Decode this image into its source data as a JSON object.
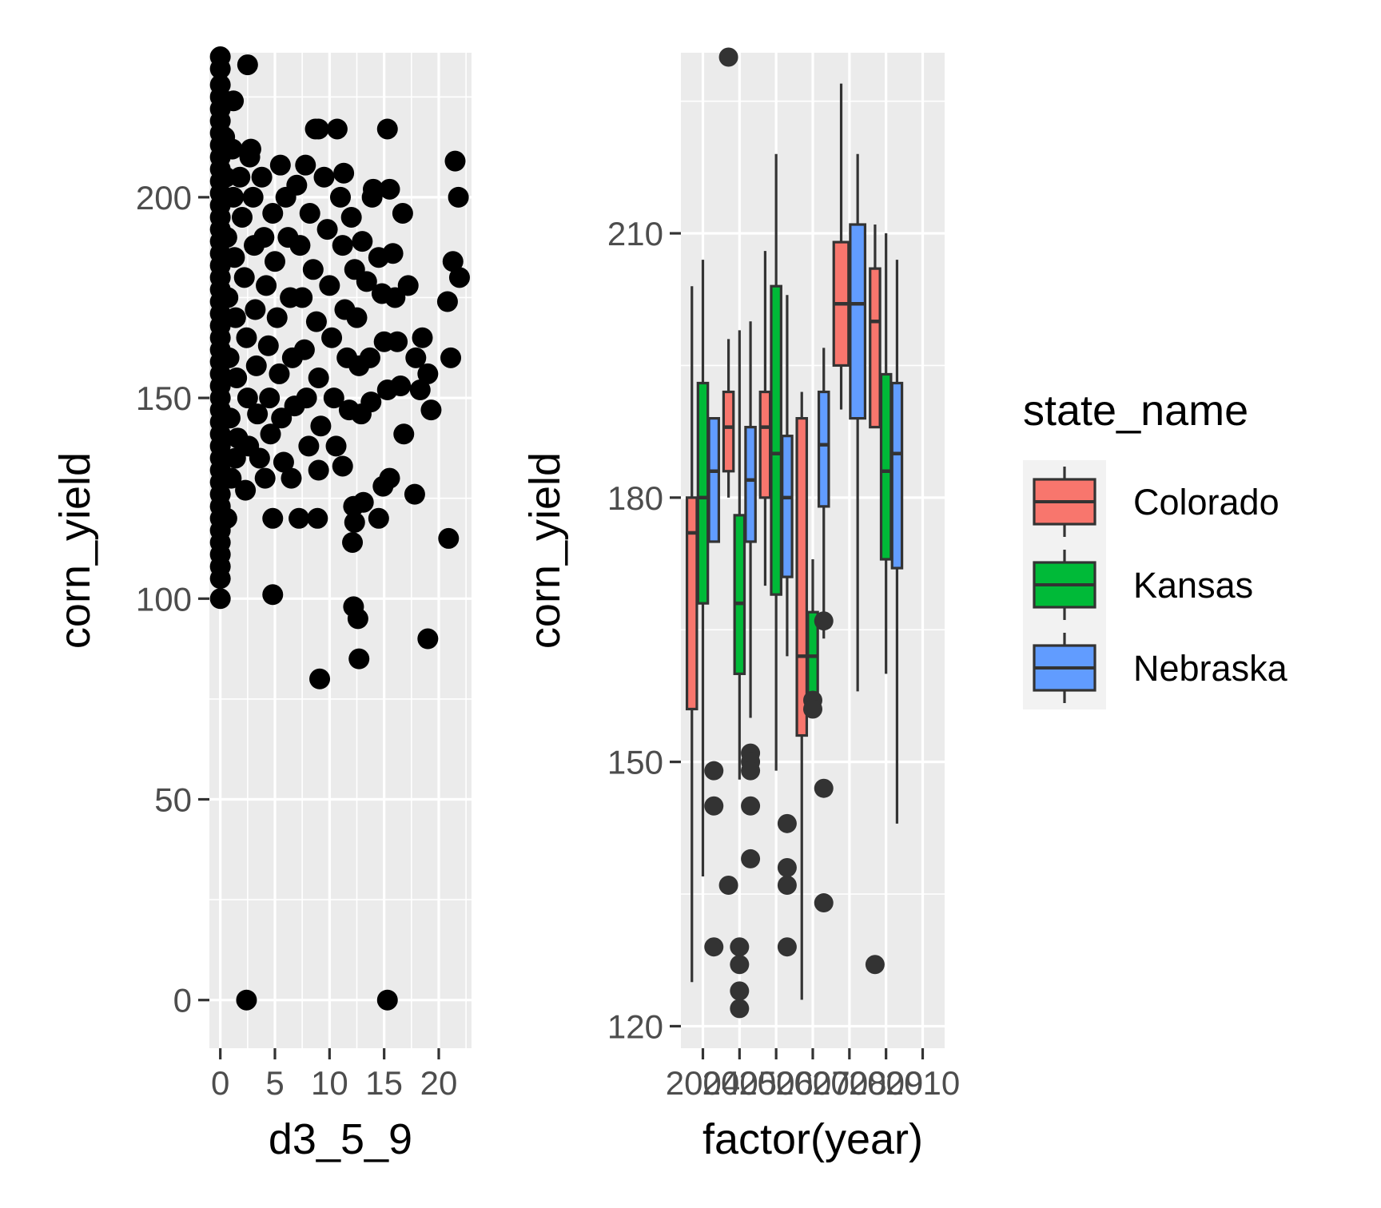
{
  "chart_data": [
    {
      "type": "scatter",
      "xlabel": "d3_5_9",
      "ylabel": "corn_yield",
      "xlim": [
        -1,
        23
      ],
      "ylim": [
        -12,
        236
      ],
      "xticks": [
        0,
        5,
        10,
        15,
        20
      ],
      "xtick_labels": [
        "0",
        "5",
        "10",
        "15",
        "20"
      ],
      "yticks": [
        0,
        50,
        100,
        150,
        200
      ],
      "ytick_labels": [
        "0",
        "50",
        "100",
        "150",
        "200"
      ],
      "grid": true,
      "point_color": "#000000",
      "points": [
        [
          0,
          235
        ],
        [
          0,
          232
        ],
        [
          0,
          228
        ],
        [
          0,
          225
        ],
        [
          0,
          222
        ],
        [
          0,
          219
        ],
        [
          0,
          216
        ],
        [
          0,
          213
        ],
        [
          0,
          210
        ],
        [
          0,
          207
        ],
        [
          0,
          204
        ],
        [
          0,
          201
        ],
        [
          0,
          198
        ],
        [
          0,
          195
        ],
        [
          0,
          192
        ],
        [
          0,
          189
        ],
        [
          0,
          186
        ],
        [
          0,
          183
        ],
        [
          0,
          180
        ],
        [
          0,
          177
        ],
        [
          0,
          174
        ],
        [
          0,
          171
        ],
        [
          0,
          168
        ],
        [
          0,
          165
        ],
        [
          0,
          162
        ],
        [
          0,
          159
        ],
        [
          0,
          156
        ],
        [
          0,
          153
        ],
        [
          0,
          150
        ],
        [
          0,
          147
        ],
        [
          0,
          144
        ],
        [
          0,
          141
        ],
        [
          0,
          138
        ],
        [
          0,
          135
        ],
        [
          0,
          132
        ],
        [
          0,
          129
        ],
        [
          0,
          126
        ],
        [
          0,
          123
        ],
        [
          0,
          120
        ],
        [
          0,
          117
        ],
        [
          0,
          114
        ],
        [
          0,
          111
        ],
        [
          0,
          108
        ],
        [
          0,
          105
        ],
        [
          0,
          100
        ],
        [
          0.4,
          215
        ],
        [
          0.5,
          205
        ],
        [
          0.6,
          190
        ],
        [
          0.7,
          175
        ],
        [
          0.8,
          160
        ],
        [
          0.9,
          145
        ],
        [
          1.0,
          130
        ],
        [
          0.6,
          120
        ],
        [
          1.2,
          200
        ],
        [
          1.3,
          185
        ],
        [
          1.4,
          170
        ],
        [
          1.5,
          155
        ],
        [
          1.6,
          140
        ],
        [
          1.1,
          212
        ],
        [
          1.2,
          224
        ],
        [
          1.4,
          135
        ],
        [
          1.8,
          205
        ],
        [
          2.0,
          195
        ],
        [
          2.2,
          180
        ],
        [
          2.4,
          165
        ],
        [
          2.5,
          150
        ],
        [
          2.6,
          138
        ],
        [
          2.3,
          127
        ],
        [
          2.7,
          210
        ],
        [
          3.0,
          200
        ],
        [
          3.1,
          188
        ],
        [
          3.2,
          172
        ],
        [
          3.3,
          158
        ],
        [
          3.4,
          146
        ],
        [
          3.6,
          135
        ],
        [
          2.5,
          233
        ],
        [
          2.8,
          212
        ],
        [
          3.8,
          205
        ],
        [
          4.0,
          190
        ],
        [
          4.2,
          178
        ],
        [
          4.4,
          163
        ],
        [
          4.5,
          150
        ],
        [
          4.6,
          141
        ],
        [
          4.1,
          130
        ],
        [
          4.8,
          196
        ],
        [
          5.0,
          184
        ],
        [
          5.2,
          170
        ],
        [
          5.4,
          156
        ],
        [
          5.6,
          145
        ],
        [
          5.8,
          134
        ],
        [
          4.8,
          120
        ],
        [
          4.8,
          101
        ],
        [
          5.5,
          208
        ],
        [
          6.0,
          200
        ],
        [
          6.2,
          190
        ],
        [
          6.4,
          175
        ],
        [
          6.6,
          160
        ],
        [
          6.8,
          148
        ],
        [
          6.5,
          130
        ],
        [
          7.0,
          203
        ],
        [
          7.3,
          188
        ],
        [
          7.5,
          175
        ],
        [
          7.7,
          162
        ],
        [
          7.9,
          150
        ],
        [
          8.1,
          138
        ],
        [
          7.2,
          120
        ],
        [
          7.8,
          208
        ],
        [
          8.2,
          196
        ],
        [
          8.5,
          182
        ],
        [
          8.8,
          169
        ],
        [
          9.0,
          155
        ],
        [
          9.2,
          143
        ],
        [
          9.0,
          132
        ],
        [
          8.7,
          217
        ],
        [
          9.0,
          217
        ],
        [
          8.9,
          120
        ],
        [
          9.1,
          80
        ],
        [
          9.5,
          205
        ],
        [
          9.8,
          192
        ],
        [
          10.0,
          178
        ],
        [
          10.2,
          165
        ],
        [
          10.4,
          150
        ],
        [
          10.6,
          138
        ],
        [
          10.7,
          217
        ],
        [
          11.0,
          200
        ],
        [
          11.2,
          188
        ],
        [
          11.4,
          172
        ],
        [
          11.6,
          160
        ],
        [
          11.8,
          147
        ],
        [
          11.2,
          133
        ],
        [
          11.3,
          206
        ],
        [
          12.0,
          195
        ],
        [
          12.3,
          182
        ],
        [
          12.5,
          170
        ],
        [
          12.7,
          158
        ],
        [
          12.9,
          146
        ],
        [
          12.2,
          123
        ],
        [
          12.3,
          119
        ],
        [
          12.1,
          114
        ],
        [
          12.2,
          98
        ],
        [
          12.6,
          95
        ],
        [
          12.7,
          85
        ],
        [
          13.0,
          189
        ],
        [
          13.4,
          179
        ],
        [
          13.7,
          160
        ],
        [
          13.8,
          149
        ],
        [
          13.1,
          124
        ],
        [
          13.9,
          200
        ],
        [
          14.0,
          202
        ],
        [
          14.5,
          185
        ],
        [
          14.8,
          176
        ],
        [
          15.0,
          164
        ],
        [
          15.3,
          152
        ],
        [
          15.5,
          130
        ],
        [
          14.9,
          128
        ],
        [
          14.5,
          120
        ],
        [
          15.3,
          217
        ],
        [
          15.5,
          202
        ],
        [
          15.8,
          186
        ],
        [
          16.0,
          175
        ],
        [
          16.2,
          164
        ],
        [
          16.5,
          153
        ],
        [
          16.8,
          141
        ],
        [
          16.7,
          196
        ],
        [
          17.2,
          178
        ],
        [
          17.9,
          160
        ],
        [
          17.8,
          126
        ],
        [
          18.3,
          152
        ],
        [
          18.5,
          165
        ],
        [
          19.0,
          156
        ],
        [
          19.3,
          147
        ],
        [
          19.0,
          90
        ],
        [
          20.8,
          174
        ],
        [
          20.9,
          115
        ],
        [
          21.1,
          160
        ],
        [
          21.3,
          184
        ],
        [
          21.5,
          209
        ],
        [
          21.8,
          200
        ],
        [
          21.9,
          180
        ],
        [
          2.4,
          0
        ],
        [
          15.3,
          0
        ]
      ]
    },
    {
      "type": "boxplot",
      "xlabel": "factor(year)",
      "ylabel": "corn_yield",
      "ylim": [
        117.5,
        230.5
      ],
      "yticks": [
        120,
        150,
        180,
        210
      ],
      "ytick_labels": [
        "120",
        "150",
        "180",
        "210"
      ],
      "grid": true,
      "categories": [
        "2004",
        "2005",
        "2006",
        "2007",
        "2008",
        "2009",
        "2010"
      ],
      "xtick_labels": [
        "2004",
        "2005",
        "2006",
        "2007",
        "2008",
        "2009",
        "2010"
      ],
      "legend": {
        "title": "state_name",
        "position": "right",
        "entries": [
          {
            "label": "Colorado",
            "color": "#F8766D"
          },
          {
            "label": "Kansas",
            "color": "#00BA38"
          },
          {
            "label": "Nebraska",
            "color": "#619CFF"
          }
        ]
      },
      "series": [
        {
          "name": "Colorado",
          "color": "#F8766D",
          "boxes": [
            {
              "category": "2004",
              "min": 125,
              "q1": 156,
              "median": 176,
              "q3": 180,
              "max": 204,
              "outliers": []
            },
            {
              "category": "2005",
              "min": 180,
              "q1": 183,
              "median": 188,
              "q3": 192,
              "max": 198,
              "outliers": [
                230,
                136
              ]
            },
            {
              "category": "2006",
              "min": 170,
              "q1": 180,
              "median": 188,
              "q3": 192,
              "max": 208,
              "outliers": []
            },
            {
              "category": "2007",
              "min": 123,
              "q1": 153,
              "median": 162,
              "q3": 189,
              "max": 192,
              "outliers": []
            },
            {
              "category": "2008",
              "min": 190,
              "q1": 195,
              "median": 202,
              "q3": 209,
              "max": 227,
              "outliers": []
            },
            {
              "category": "2009",
              "min": 188,
              "q1": 188,
              "median": 200,
              "q3": 206,
              "max": 211,
              "outliers": [
                127
              ]
            }
          ]
        },
        {
          "name": "Kansas",
          "color": "#00BA38",
          "boxes": [
            {
              "category": "2004",
              "min": 137,
              "q1": 168,
              "median": 180,
              "q3": 193,
              "max": 207,
              "outliers": []
            },
            {
              "category": "2005",
              "min": 148,
              "q1": 160,
              "median": 168,
              "q3": 178,
              "max": 199,
              "outliers": [
                129,
                127,
                124,
                122
              ]
            },
            {
              "category": "2006",
              "min": 149,
              "q1": 169,
              "median": 185,
              "q3": 204,
              "max": 219,
              "outliers": []
            },
            {
              "category": "2007",
              "min": 156,
              "q1": 156,
              "median": 162,
              "q3": 167,
              "max": 173,
              "outliers": [
                157,
                156
              ]
            },
            {
              "category": "2009",
              "min": 160,
              "q1": 173,
              "median": 183,
              "q3": 194,
              "max": 210,
              "outliers": []
            }
          ]
        },
        {
          "name": "Nebraska",
          "color": "#619CFF",
          "boxes": [
            {
              "category": "2004",
              "min": 175,
              "q1": 175,
              "median": 183,
              "q3": 189,
              "max": 189,
              "outliers": [
                149,
                145,
                129
              ]
            },
            {
              "category": "2005",
              "min": 155,
              "q1": 175,
              "median": 182,
              "q3": 188,
              "max": 200,
              "outliers": [
                151,
                150,
                149,
                145,
                139
              ]
            },
            {
              "category": "2006",
              "min": 162,
              "q1": 171,
              "median": 180,
              "q3": 187,
              "max": 203,
              "outliers": [
                143,
                138,
                136,
                129
              ]
            },
            {
              "category": "2007",
              "min": 164,
              "q1": 179,
              "median": 186,
              "q3": 192,
              "max": 197,
              "outliers": [
                166,
                147,
                134
              ]
            },
            {
              "category": "2008",
              "min": 158,
              "q1": 189,
              "median": 202,
              "q3": 211,
              "max": 219,
              "outliers": []
            },
            {
              "category": "2009",
              "min": 143,
              "q1": 172,
              "median": 185,
              "q3": 193,
              "max": 207,
              "outliers": []
            }
          ]
        }
      ]
    }
  ]
}
